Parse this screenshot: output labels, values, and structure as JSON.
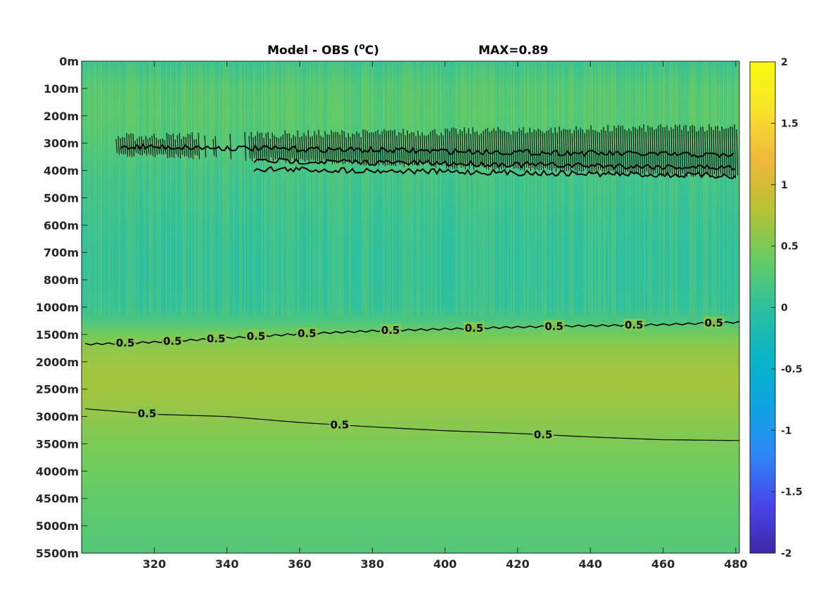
{
  "chart_data": {
    "type": "heatmap",
    "title": {
      "prefix": "Model - OBS (",
      "sup": "o",
      "suffix": "C)",
      "max_label": "MAX=0.89"
    },
    "xlim": [
      300,
      481
    ],
    "x_ticks": [
      320,
      340,
      360,
      380,
      400,
      420,
      440,
      460,
      480
    ],
    "y_ticks": [
      "0m",
      "100m",
      "200m",
      "300m",
      "400m",
      "500m",
      "600m",
      "700m",
      "800m",
      "1000m",
      "1500m",
      "2000m",
      "2500m",
      "3000m",
      "3500m",
      "4000m",
      "4500m",
      "5000m",
      "5500m"
    ],
    "colorbar": {
      "min": -2,
      "max": 2,
      "ticks": [
        "2",
        "1.5",
        "1",
        "0.5",
        "0",
        "-0.5",
        "-1",
        "-1.5",
        "-2"
      ],
      "colormap": "parula",
      "stops": [
        "#3e26a8",
        "#4746eb",
        "#2e87f7",
        "#0da4e1",
        "#08b5c6",
        "#2ec09f",
        "#68cc61",
        "#b8c234",
        "#f0b73b",
        "#f9e22b",
        "#f9fb0e"
      ]
    },
    "field_profile": {
      "depth_index": [
        0,
        0.5,
        1,
        2,
        3,
        4,
        5,
        6,
        7,
        8,
        9,
        9.5,
        10,
        10.5,
        11,
        11.5,
        12,
        12.5,
        13,
        14,
        15,
        16,
        17,
        18
      ],
      "value": [
        0.1,
        0.2,
        0.3,
        0.32,
        0.25,
        0.15,
        0.1,
        0.05,
        0.02,
        0.02,
        0.05,
        0.2,
        0.45,
        0.6,
        0.66,
        0.7,
        0.7,
        0.65,
        0.6,
        0.5,
        0.42,
        0.35,
        0.3,
        0.25
      ]
    },
    "contours": [
      {
        "level": "0.5",
        "x": [
          301,
          320,
          340,
          360,
          380,
          400,
          420,
          440,
          460,
          481
        ],
        "depth_index": [
          10.36,
          10.28,
          10.13,
          9.98,
          9.87,
          9.8,
          9.73,
          9.68,
          9.64,
          9.55
        ],
        "label_x": [
          312,
          325,
          337,
          348,
          362,
          385,
          408,
          430,
          452,
          474
        ]
      },
      {
        "level": "0.5",
        "x": [
          301,
          320,
          340,
          360,
          380,
          400,
          420,
          440,
          460,
          481
        ],
        "depth_index": [
          12.72,
          12.92,
          13.0,
          13.22,
          13.38,
          13.52,
          13.62,
          13.75,
          13.85,
          13.88
        ],
        "label_x": [
          318,
          371,
          427
        ]
      }
    ],
    "noisy_contour_band": {
      "depth_index_range": [
        2.5,
        4.2
      ],
      "label": "0.5"
    }
  }
}
